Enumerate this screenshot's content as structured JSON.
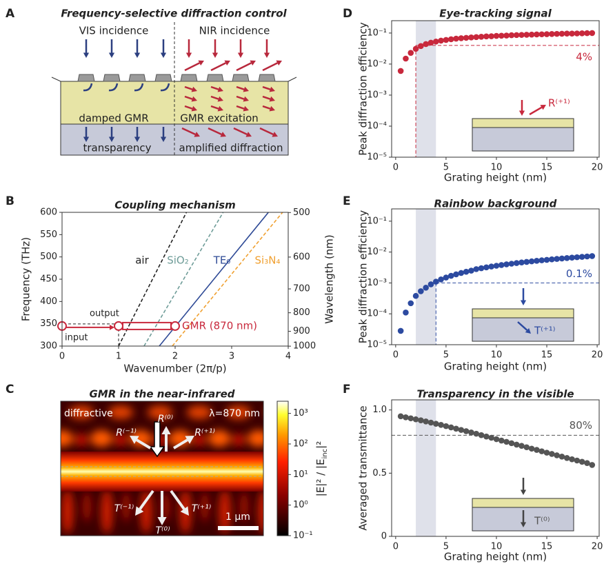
{
  "panel_a": {
    "panel_label": "A",
    "title": "Frequency-selective diffraction control",
    "left_top": "VIS incidence",
    "right_top": "NIR incidence",
    "left_mid": "damped GMR",
    "right_mid": "GMR excitation",
    "left_bottom": "transparency",
    "right_bottom": "amplified diffraction"
  },
  "panel_c": {
    "panel_label": "C",
    "title": "GMR in the near-infrared",
    "mode": "diffractive",
    "wavelength": "λ=870 nm",
    "reflected": [
      "R⁽⁻¹⁾",
      "R⁽⁰⁾",
      "R⁽⁺¹⁾"
    ],
    "transmitted": [
      "T⁽⁻¹⁾",
      "T⁽⁰⁾",
      "T⁽⁺¹⁾"
    ],
    "scale_bar": "1 μm",
    "colorbar": {
      "label": [
        "|E|² / |E",
        "inc",
        "|²"
      ],
      "log": true,
      "clim": [
        0.1,
        2500
      ],
      "ticks": [
        {
          "value": 0.1,
          "label": "10⁻¹"
        },
        {
          "value": 1,
          "label": "10⁰"
        },
        {
          "value": 10,
          "label": "10¹"
        },
        {
          "value": 100,
          "label": "10²"
        },
        {
          "value": 1000,
          "label": "10³"
        }
      ]
    }
  },
  "chart_data": [
    {
      "panel_label": "B",
      "type": "line",
      "title": "Coupling mechanism",
      "x_label": "Wavenumber (2π/p)",
      "y_label": "Frequency (THz)",
      "y2_label": "Wavelength (nm)",
      "xlim": [
        0,
        4
      ],
      "xticks": [
        0,
        1,
        2,
        3,
        4
      ],
      "ylim": [
        300,
        600
      ],
      "yticks": [
        300,
        350,
        400,
        450,
        500,
        550,
        600
      ],
      "y2lim": [
        1000,
        500
      ],
      "y2ticks": [
        500,
        600,
        700,
        800,
        900,
        1000
      ],
      "series": [
        {
          "name": "air",
          "color": "#222222",
          "dash": true,
          "x": [
            1,
            2.2
          ],
          "values": [
            300,
            600
          ]
        },
        {
          "name": "SiO₂",
          "color": "#6e9c98",
          "dash": true,
          "x": [
            1.45,
            2.85
          ],
          "values": [
            300,
            600
          ]
        },
        {
          "name": "TE₀",
          "color": "#2e4a96",
          "dash": false,
          "x": [
            1.72,
            3.65
          ],
          "values": [
            300,
            600
          ]
        },
        {
          "name": "Si₃N₄",
          "color": "#f0a030",
          "dash": true,
          "x": [
            1.95,
            3.9
          ],
          "values": [
            300,
            600
          ]
        }
      ],
      "gmr": {
        "label": "GMR (870 nm)",
        "color": "#c8283c",
        "x": [
          0,
          1,
          2
        ],
        "y": [
          345,
          345,
          345
        ]
      },
      "input_label": "input",
      "output_label": "output"
    },
    {
      "panel_label": "D",
      "type": "scatter",
      "title": "Eye-tracking signal",
      "x_label": "Grating height (nm)",
      "y_label": "Peak diffraction efficiency",
      "log_y": true,
      "xlim": [
        -0.4,
        20.2
      ],
      "xticks": [
        0,
        5,
        10,
        15,
        20
      ],
      "ylim": [
        1e-05,
        0.25
      ],
      "yticks": [
        {
          "value": 1e-05,
          "label": "10⁻⁵"
        },
        {
          "value": 0.0001,
          "label": "10⁻⁴"
        },
        {
          "value": 0.001,
          "label": "10⁻³"
        },
        {
          "value": 0.01,
          "label": "10⁻²"
        },
        {
          "value": 0.1,
          "label": "10⁻¹"
        }
      ],
      "color": "#c8283c",
      "shade": [
        2,
        4
      ],
      "threshold": {
        "x": 2,
        "y": 0.04,
        "label": "4%"
      },
      "inset_label": "R⁽⁺¹⁾",
      "x": [
        0.5,
        1,
        1.5,
        2,
        2.5,
        3,
        3.5,
        4,
        4.5,
        5,
        5.5,
        6,
        6.5,
        7,
        7.5,
        8,
        8.5,
        9,
        9.5,
        10,
        10.5,
        11,
        11.5,
        12,
        12.5,
        13,
        13.5,
        14,
        14.5,
        15,
        15.5,
        16,
        16.5,
        17,
        17.5,
        18,
        18.5,
        19,
        19.5
      ],
      "values": [
        0.006,
        0.015,
        0.023,
        0.031,
        0.038,
        0.044,
        0.049,
        0.053,
        0.057,
        0.06,
        0.063,
        0.066,
        0.068,
        0.07,
        0.072,
        0.074,
        0.076,
        0.078,
        0.079,
        0.081,
        0.082,
        0.083,
        0.085,
        0.086,
        0.087,
        0.088,
        0.089,
        0.09,
        0.091,
        0.092,
        0.093,
        0.094,
        0.095,
        0.096,
        0.096,
        0.097,
        0.098,
        0.099,
        0.1
      ]
    },
    {
      "panel_label": "E",
      "type": "scatter",
      "title": "Rainbow background",
      "x_label": "Grating height (nm)",
      "y_label": "Peak diffraction efficiency",
      "log_y": true,
      "xlim": [
        -0.4,
        20.2
      ],
      "xticks": [
        0,
        5,
        10,
        15,
        20
      ],
      "ylim": [
        1e-05,
        0.25
      ],
      "yticks": [
        {
          "value": 1e-05,
          "label": "10⁻⁵"
        },
        {
          "value": 0.0001,
          "label": "10⁻⁴"
        },
        {
          "value": 0.001,
          "label": "10⁻³"
        },
        {
          "value": 0.01,
          "label": "10⁻²"
        },
        {
          "value": 0.1,
          "label": "10⁻¹"
        }
      ],
      "color": "#2c4aa0",
      "shade": [
        2,
        4
      ],
      "threshold": {
        "x": 4,
        "y": 0.001,
        "label": "0.1%"
      },
      "inset_label": "T⁽⁺¹⁾",
      "x": [
        0.5,
        1,
        1.5,
        2,
        2.5,
        3,
        3.5,
        4,
        4.5,
        5,
        5.5,
        6,
        6.5,
        7,
        7.5,
        8,
        8.5,
        9,
        9.5,
        10,
        10.5,
        11,
        11.5,
        12,
        12.5,
        13,
        13.5,
        14,
        14.5,
        15,
        15.5,
        16,
        16.5,
        17,
        17.5,
        18,
        18.5,
        19,
        19.5
      ],
      "values": [
        2.8e-05,
        0.00011,
        0.00022,
        0.00038,
        0.00054,
        0.0007,
        0.0009,
        0.0011,
        0.0013,
        0.0015,
        0.0017,
        0.0019,
        0.0021,
        0.0023,
        0.0025,
        0.0028,
        0.003,
        0.0032,
        0.0034,
        0.0036,
        0.0038,
        0.004,
        0.0042,
        0.0044,
        0.0046,
        0.0048,
        0.005,
        0.0052,
        0.0054,
        0.0056,
        0.0058,
        0.006,
        0.0062,
        0.0064,
        0.0066,
        0.0068,
        0.007,
        0.0072,
        0.0074
      ]
    },
    {
      "panel_label": "F",
      "type": "scatter",
      "title": "Transparency in the visible",
      "x_label": "Grating height (nm)",
      "y_label": "Averaged transmittance",
      "log_y": false,
      "xlim": [
        -0.4,
        20.2
      ],
      "xticks": [
        0,
        5,
        10,
        15,
        20
      ],
      "ylim": [
        0,
        1.08
      ],
      "yticks": [
        0,
        0.5,
        {
          "value": 1,
          "label": "1.0"
        }
      ],
      "color": "#555555",
      "shade": [
        2,
        4
      ],
      "threshold": {
        "y": 0.8,
        "label": "80%"
      },
      "inset_label": "T⁽⁰⁾",
      "x": [
        0.5,
        1,
        1.5,
        2,
        2.5,
        3,
        3.5,
        4,
        4.5,
        5,
        5.5,
        6,
        6.5,
        7,
        7.5,
        8,
        8.5,
        9,
        9.5,
        10,
        10.5,
        11,
        11.5,
        12,
        12.5,
        13,
        13.5,
        14,
        14.5,
        15,
        15.5,
        16,
        16.5,
        17,
        17.5,
        18,
        18.5,
        19,
        19.5
      ],
      "values": [
        0.95,
        0.942,
        0.934,
        0.926,
        0.918,
        0.909,
        0.9,
        0.891,
        0.882,
        0.872,
        0.862,
        0.852,
        0.842,
        0.832,
        0.822,
        0.812,
        0.801,
        0.79,
        0.78,
        0.769,
        0.758,
        0.748,
        0.737,
        0.726,
        0.716,
        0.705,
        0.694,
        0.684,
        0.673,
        0.662,
        0.652,
        0.641,
        0.631,
        0.62,
        0.61,
        0.6,
        0.59,
        0.58,
        0.565
      ]
    }
  ]
}
